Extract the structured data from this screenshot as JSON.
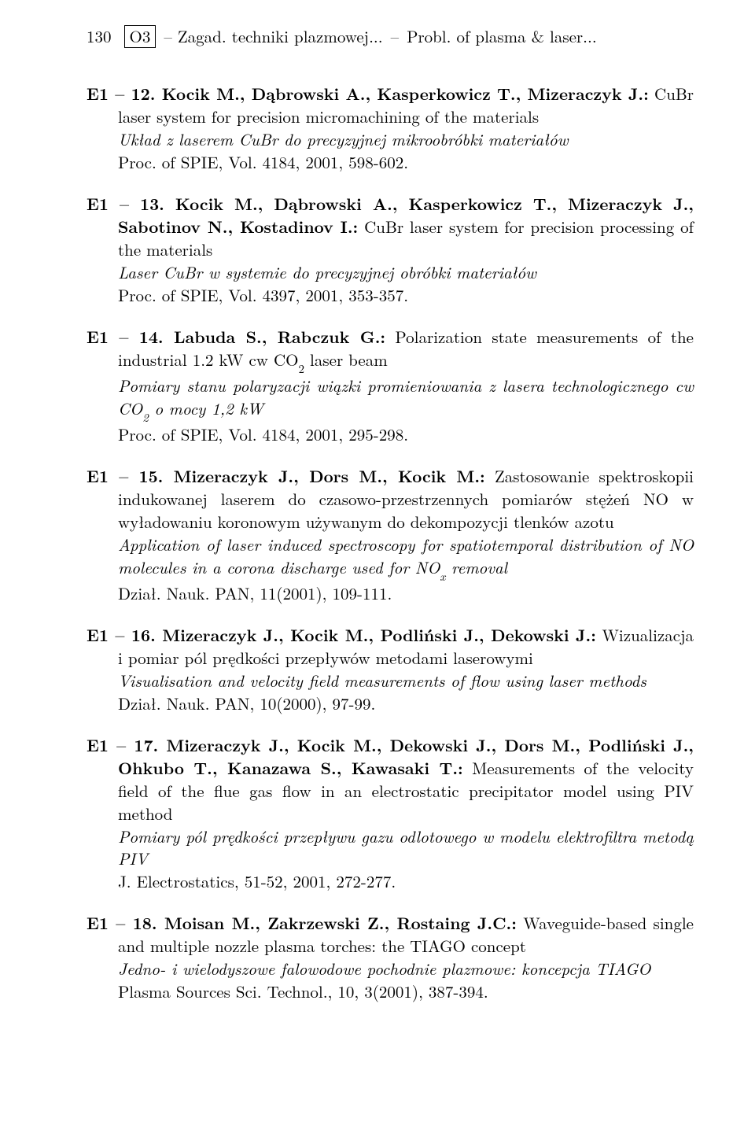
{
  "header": {
    "page_number": "130",
    "box_label": "O3",
    "title_left": "– Zagad. techniki plazmowej...",
    "dash": " – ",
    "title_right": "Probl. of plasma & laser..."
  },
  "entries": [
    {
      "id_auth": "E1 – 12. Kocik M., Dąbrowski A., Kasperkowicz T., Mizeraczyk J.:",
      "tail": "CuBr laser system for precision micromachining of the materials",
      "italic1": "Układ z laserem CuBr do precyzyjnej mikroobróbki materiałów",
      "ref": "Proc. of SPIE, Vol. 4184, 2001, 598-602."
    },
    {
      "id_auth": "E1 – 13. Kocik M., Dąbrowski A., Kasperkowicz T., Mizeraczyk J., Sabotinov N., Kostadinov I.:",
      "tail": " CuBr laser system for precision processing of the materials",
      "italic1": "Laser CuBr w systemie do precyzyjnej obróbki materiałów",
      "ref": "Proc. of SPIE, Vol. 4397, 2001, 353-357."
    },
    {
      "id_auth": "E1 – 14. Labuda S., Rabczuk G.:",
      "tail_pre": " Polarization state measurements of the industrial 1.2 kW cw CO",
      "tail_sub": "2",
      "tail_post": " laser beam",
      "italic_pre": "Pomiary stanu polaryzacji wiązki promieniowania z lasera technologicznego cw CO",
      "italic_sub": "2",
      "italic_post": " o mocy 1,2 kW",
      "ref": "Proc. of SPIE, Vol. 4184, 2001, 295-298."
    },
    {
      "id_auth": "E1 – 15. Mizeraczyk J., Dors M., Kocik M.:",
      "tail": " Zastosowanie spektroskopii indukowanej laserem do czasowo-przestrzennych pomiarów stężeń NO w wyładowaniu koronowym używanym do dekompozycji tlenków azotu",
      "italic_pre": "Application of laser induced spectroscopy for spatiotemporal distribution of NO molecules in a corona discharge used for NO",
      "italic_sub": "x",
      "italic_post": " removal",
      "ref": "Dział. Nauk. PAN, 11(2001), 109-111."
    },
    {
      "id_auth": "E1 – 16. Mizeraczyk J., Kocik M., Podliński J., Dekowski J.:",
      "tail": " Wizualizacja i pomiar pól prędkości przepływów metodami laserowymi",
      "italic1": "Visualisation and velocity field measurements of flow using laser methods",
      "ref": "Dział. Nauk. PAN, 10(2000), 97-99."
    },
    {
      "id_auth": "E1 – 17. Mizeraczyk J., Kocik M., Dekowski J., Dors M., Podliński J., Ohkubo T., Kanazawa S., Kawasaki T.:",
      "tail": " Measurements of the velocity field of the flue gas flow in an electrostatic precipitator model using PIV method",
      "italic1": "Pomiary pól prędkości przepływu gazu odlotowego w modelu elektrofiltra metodą PIV",
      "ref": "J. Electrostatics, 51-52, 2001, 272-277."
    },
    {
      "id_auth": "E1 – 18. Moisan M., Zakrzewski Z., Rostaing J.C.:",
      "tail": " Waveguide-based single and multiple nozzle plasma torches: the TIAGO concept",
      "italic1": "Jedno- i wielodyszowe falowodowe pochodnie plazmowe: koncepcja TIAGO",
      "ref": "Plasma Sources Sci. Technol., 10, 3(2001), 387-394."
    }
  ]
}
